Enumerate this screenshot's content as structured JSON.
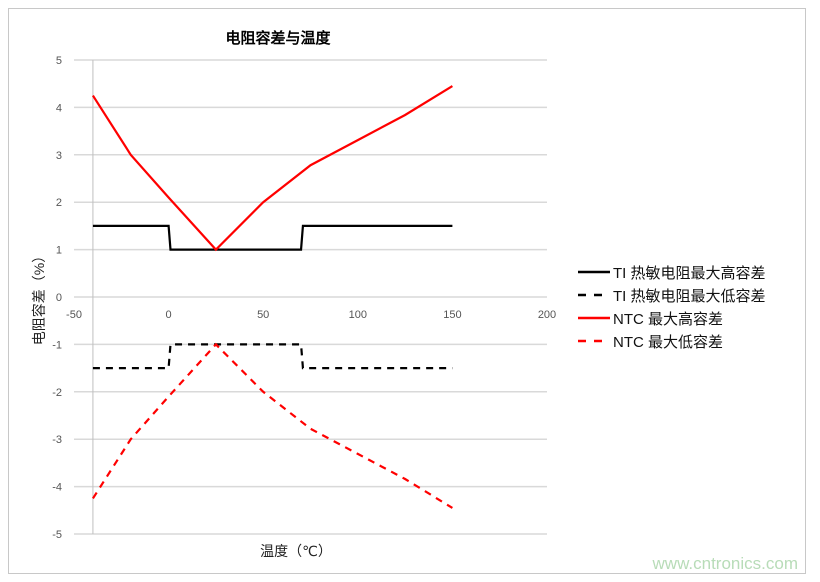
{
  "chart_data": {
    "type": "line",
    "title": "电阻容差与温度",
    "xlabel": "温度（℃）",
    "ylabel": "电阻容差（%）",
    "xlim": [
      -50,
      200
    ],
    "ylim": [
      -5,
      5
    ],
    "xticks": [
      -50,
      0,
      50,
      100,
      150,
      200
    ],
    "yticks": [
      5,
      4,
      3,
      2,
      1,
      0,
      -1,
      -2,
      -3,
      -4,
      -5
    ],
    "grid": "horizontal",
    "legend_position": "right",
    "series": [
      {
        "name": "TI 热敏电阻最大高容差",
        "color": "#000000",
        "dash": false,
        "x": [
          -40,
          0,
          1,
          70,
          71,
          150
        ],
        "y": [
          1.5,
          1.5,
          1.0,
          1.0,
          1.5,
          1.5
        ]
      },
      {
        "name": "TI 热敏电阻最大低容差",
        "color": "#000000",
        "dash": true,
        "x": [
          -40,
          0,
          1,
          70,
          71,
          150
        ],
        "y": [
          -1.5,
          -1.5,
          -1.0,
          -1.0,
          -1.5,
          -1.5
        ]
      },
      {
        "name": "NTC 最大高容差",
        "color": "#ff0000",
        "dash": false,
        "x": [
          -40,
          -20,
          0,
          25,
          50,
          75,
          100,
          125,
          150
        ],
        "y": [
          4.25,
          3.0,
          2.1,
          1.0,
          2.0,
          2.78,
          3.31,
          3.84,
          4.45
        ]
      },
      {
        "name": "NTC 最大低容差",
        "color": "#ff0000",
        "dash": true,
        "x": [
          -40,
          -20,
          0,
          25,
          50,
          75,
          100,
          125,
          150
        ],
        "y": [
          -4.25,
          -3.0,
          -2.1,
          -1.0,
          -2.0,
          -2.78,
          -3.31,
          -3.84,
          -4.45
        ]
      }
    ]
  },
  "watermark": "www.cntronics.com"
}
